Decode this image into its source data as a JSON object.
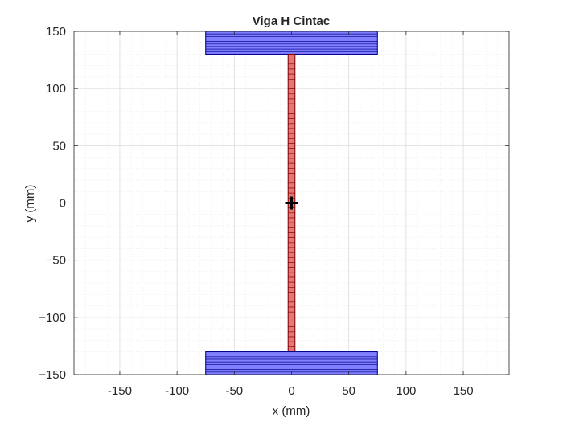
{
  "chart_data": {
    "type": "cross-section",
    "title": "Viga H Cintac",
    "xlabel": "x (mm)",
    "ylabel": "y (mm)",
    "xlim": [
      -190,
      190
    ],
    "ylim": [
      -150,
      150
    ],
    "xticks": [
      -150,
      -100,
      -50,
      0,
      50,
      100,
      150
    ],
    "xtick_labels": [
      "-150",
      "-100",
      "-50",
      "0",
      "50",
      "100",
      "150"
    ],
    "yticks": [
      -150,
      -100,
      -50,
      0,
      50,
      100,
      150
    ],
    "ytick_labels": [
      "−150",
      "−100",
      "−50",
      "0",
      "50",
      "100",
      "150"
    ],
    "grid": true,
    "minor_grid": true,
    "elements": [
      {
        "name": "top-flange",
        "x": [
          -75,
          75
        ],
        "y": [
          130,
          150
        ],
        "layers": 9,
        "fill": "#8080ff",
        "stroke": "#00008b"
      },
      {
        "name": "web",
        "x": [
          -3,
          3
        ],
        "y": [
          -130,
          130
        ],
        "layers": 60,
        "fill": "#e07a7a",
        "stroke": "#8b0000"
      },
      {
        "name": "bottom-flange",
        "x": [
          -75,
          75
        ],
        "y": [
          -150,
          -130
        ],
        "layers": 9,
        "fill": "#8080ff",
        "stroke": "#00008b"
      }
    ],
    "centroid": {
      "x": 0,
      "y": 0,
      "marker": "+"
    }
  }
}
